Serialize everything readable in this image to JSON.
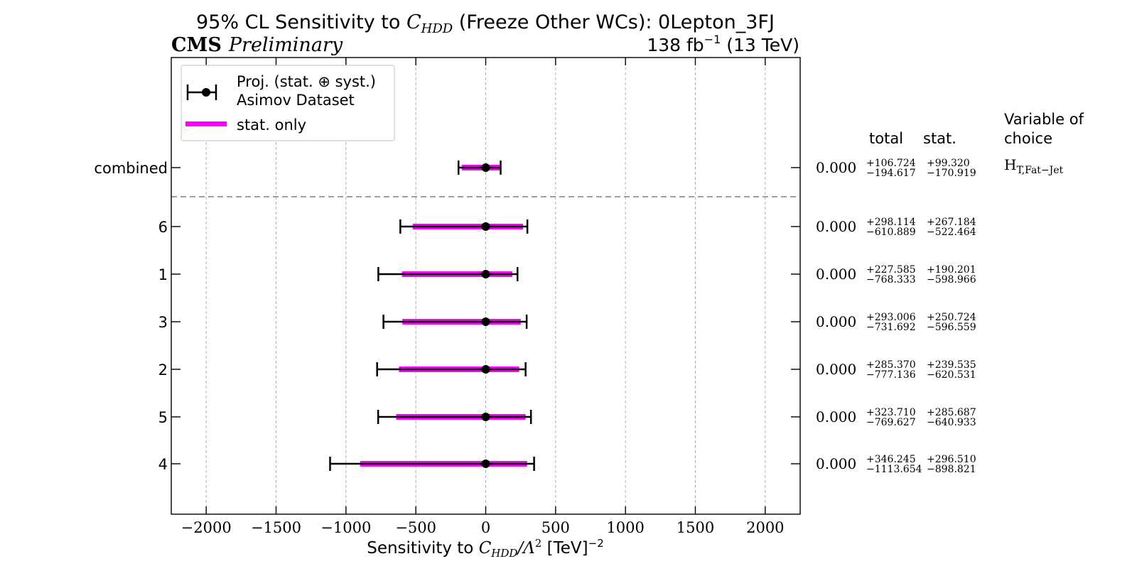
{
  "header": {
    "title_prefix": "95% CL Sensitivity to ",
    "title_symbol": "C",
    "title_symbol_sub": "HDD",
    "title_suffix": " (Freeze Other WCs): 0Lepton_3FJ",
    "experiment": "CMS",
    "status": "Preliminary",
    "lumi_value": "138 fb",
    "lumi_exp": "−1",
    "lumi_energy": " (13 TeV)"
  },
  "legend": {
    "entry_main_line1": "Proj. (stat. ⊕ syst.)",
    "entry_main_line2": "Asimov Dataset",
    "entry_stat": "stat. only"
  },
  "side_headers": {
    "total": "total",
    "stat": "stat.",
    "variable_line1": "Variable of",
    "variable_line2": "choice",
    "variable_value_main": "H",
    "variable_value_sub": "T,Fat−Jet"
  },
  "colors": {
    "stat_band": "#ff00ff",
    "total_bar": "#000000",
    "grid": "#b0b0b0",
    "separator": "#808080"
  },
  "chart_data": {
    "type": "scatter",
    "title": "95% CL Sensitivity to C_HDD (Freeze Other WCs): 0Lepton_3FJ",
    "xlabel": "Sensitivity to C_HDD/Λ^2 [TeV]^-2",
    "xlim": [
      -2250,
      2250
    ],
    "xticks": [
      "−2000",
      "−1500",
      "−1000",
      "−500",
      "0",
      "500",
      "1000",
      "1500",
      "2000"
    ],
    "xtick_values": [
      -2000,
      -1500,
      -1000,
      -500,
      0,
      500,
      1000,
      1500,
      2000
    ],
    "grid": "vertical dashed",
    "legend_position": "top-left",
    "categories": [
      "combined",
      "6",
      "1",
      "3",
      "2",
      "5",
      "4"
    ],
    "rows": [
      {
        "label": "combined",
        "center": 0.0,
        "center_text": "0.000",
        "total_up": 106.724,
        "total_down": -194.617,
        "total_up_text": "+106.724",
        "total_down_text": "−194.617",
        "stat_up": 99.32,
        "stat_down": -170.919,
        "stat_up_text": "+99.320",
        "stat_down_text": "−170.919"
      },
      {
        "label": "6",
        "center": 0.0,
        "center_text": "0.000",
        "total_up": 298.114,
        "total_down": -610.889,
        "total_up_text": "+298.114",
        "total_down_text": "−610.889",
        "stat_up": 267.184,
        "stat_down": -522.464,
        "stat_up_text": "+267.184",
        "stat_down_text": "−522.464"
      },
      {
        "label": "1",
        "center": 0.0,
        "center_text": "0.000",
        "total_up": 227.585,
        "total_down": -768.333,
        "total_up_text": "+227.585",
        "total_down_text": "−768.333",
        "stat_up": 190.201,
        "stat_down": -598.966,
        "stat_up_text": "+190.201",
        "stat_down_text": "−598.966"
      },
      {
        "label": "3",
        "center": 0.0,
        "center_text": "0.000",
        "total_up": 293.006,
        "total_down": -731.692,
        "total_up_text": "+293.006",
        "total_down_text": "−731.692",
        "stat_up": 250.724,
        "stat_down": -596.559,
        "stat_up_text": "+250.724",
        "stat_down_text": "−596.559"
      },
      {
        "label": "2",
        "center": 0.0,
        "center_text": "0.000",
        "total_up": 285.37,
        "total_down": -777.136,
        "total_up_text": "+285.370",
        "total_down_text": "−777.136",
        "stat_up": 239.535,
        "stat_down": -620.531,
        "stat_up_text": "+239.535",
        "stat_down_text": "−620.531"
      },
      {
        "label": "5",
        "center": 0.0,
        "center_text": "0.000",
        "total_up": 323.71,
        "total_down": -769.627,
        "total_up_text": "+323.710",
        "total_down_text": "−769.627",
        "stat_up": 285.687,
        "stat_down": -640.933,
        "stat_up_text": "+285.687",
        "stat_down_text": "−640.933"
      },
      {
        "label": "4",
        "center": 0.0,
        "center_text": "0.000",
        "total_up": 346.245,
        "total_down": -1113.654,
        "total_up_text": "+346.245",
        "total_down_text": "−1113.654",
        "stat_up": 296.51,
        "stat_down": -898.821,
        "stat_up_text": "+296.510",
        "stat_down_text": "−898.821"
      }
    ]
  }
}
